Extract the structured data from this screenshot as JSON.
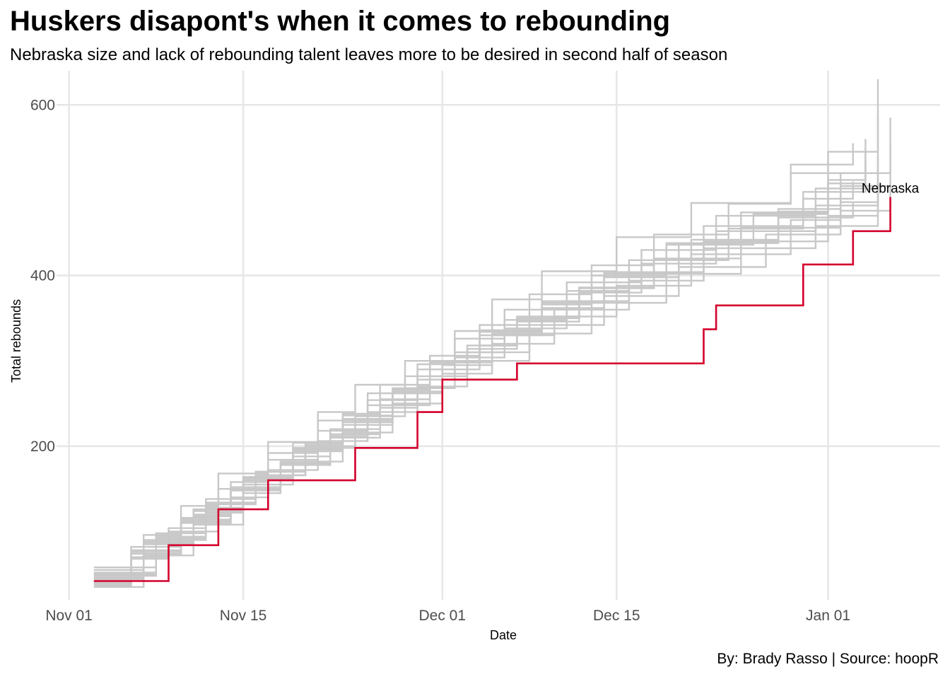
{
  "title": "Huskers disapont's when it comes to rebounding",
  "subtitle": "Nebraska size and lack of rebounding talent leaves more to be desired in second half of season",
  "caption": "By: Brady Rasso | Source: hoopR",
  "colors": {
    "highlight": "#d4002c",
    "others": "#c8c8c8",
    "grid": "#e6e6e6"
  },
  "chart_data": {
    "type": "line",
    "step": true,
    "xlabel": "Date",
    "ylabel": "Total rebounds",
    "xlim": [
      "2022-10-31",
      "2023-01-10"
    ],
    "ylim": [
      20,
      640
    ],
    "x_ticks": [
      {
        "date": "2022-11-01",
        "label": "Nov 01"
      },
      {
        "date": "2022-11-15",
        "label": "Nov 15"
      },
      {
        "date": "2022-12-01",
        "label": "Dec 01"
      },
      {
        "date": "2022-12-15",
        "label": "Dec 15"
      },
      {
        "date": "2023-01-01",
        "label": "Jan 01"
      }
    ],
    "y_ticks": [
      200,
      400,
      600
    ],
    "grid": true,
    "annotation": {
      "text": "Nebraska",
      "date": "2023-01-06",
      "y": 497
    },
    "highlight_series": {
      "name": "Nebraska",
      "x": [
        "2022-11-03",
        "2022-11-09",
        "2022-11-13",
        "2022-11-17",
        "2022-11-24",
        "2022-11-29",
        "2022-12-01",
        "2022-12-07",
        "2022-12-22",
        "2022-12-23",
        "2022-12-30",
        "2023-01-03",
        "2023-01-06"
      ],
      "y": [
        42,
        84,
        126,
        160,
        198,
        240,
        278,
        297,
        337,
        365,
        413,
        452,
        492
      ]
    },
    "series": [
      {
        "x": [
          "2022-11-03",
          "2022-11-07",
          "2022-11-11",
          "2022-11-14",
          "2022-11-18",
          "2022-11-22",
          "2022-11-25",
          "2022-11-28",
          "2022-12-02",
          "2022-12-06",
          "2022-12-11",
          "2022-12-16",
          "2022-12-22",
          "2022-12-30",
          "2023-01-04"
        ],
        "y": [
          45,
          88,
          118,
          152,
          180,
          212,
          248,
          282,
          310,
          348,
          382,
          418,
          458,
          498,
          528
        ]
      },
      {
        "x": [
          "2022-11-03",
          "2022-11-08",
          "2022-11-12",
          "2022-11-15",
          "2022-11-19",
          "2022-11-23",
          "2022-11-27",
          "2022-11-30",
          "2022-12-04",
          "2022-12-09",
          "2022-12-14",
          "2022-12-20",
          "2022-12-28",
          "2023-01-02",
          "2023-01-06"
        ],
        "y": [
          50,
          92,
          128,
          162,
          196,
          225,
          262,
          298,
          330,
          362,
          398,
          438,
          478,
          520,
          552
        ]
      },
      {
        "x": [
          "2022-11-03",
          "2022-11-06",
          "2022-11-10",
          "2022-11-14",
          "2022-11-17",
          "2022-11-21",
          "2022-11-25",
          "2022-11-29",
          "2022-12-03",
          "2022-12-08",
          "2022-12-13",
          "2022-12-19",
          "2022-12-25",
          "2023-01-01",
          "2023-01-05"
        ],
        "y": [
          38,
          76,
          110,
          140,
          172,
          206,
          240,
          270,
          300,
          332,
          368,
          402,
          440,
          470,
          500
        ]
      },
      {
        "x": [
          "2022-11-03",
          "2022-11-07",
          "2022-11-10",
          "2022-11-13",
          "2022-11-17",
          "2022-11-21",
          "2022-11-24",
          "2022-11-28",
          "2022-12-02",
          "2022-12-05",
          "2022-12-09",
          "2022-12-15",
          "2022-12-21",
          "2022-12-29",
          "2023-01-04"
        ],
        "y": [
          55,
          96,
          130,
          168,
          205,
          240,
          272,
          300,
          335,
          372,
          405,
          445,
          485,
          520,
          560
        ]
      },
      {
        "x": [
          "2022-11-03",
          "2022-11-06",
          "2022-11-09",
          "2022-11-13",
          "2022-11-16",
          "2022-11-20",
          "2022-11-24",
          "2022-11-27",
          "2022-12-01",
          "2022-12-05",
          "2022-12-10",
          "2022-12-16",
          "2022-12-22",
          "2022-12-31",
          "2023-01-05"
        ],
        "y": [
          40,
          70,
          100,
          132,
          166,
          198,
          230,
          262,
          295,
          330,
          360,
          394,
          432,
          458,
          490
        ]
      },
      {
        "x": [
          "2022-11-03",
          "2022-11-08",
          "2022-11-12",
          "2022-11-15",
          "2022-11-19",
          "2022-11-22",
          "2022-11-26",
          "2022-11-30",
          "2022-12-04",
          "2022-12-07",
          "2022-12-12",
          "2022-12-18",
          "2022-12-24",
          "2022-12-30",
          "2023-01-03"
        ],
        "y": [
          48,
          90,
          122,
          155,
          188,
          220,
          255,
          290,
          318,
          350,
          385,
          418,
          455,
          490,
          510
        ]
      },
      {
        "x": [
          "2022-11-03",
          "2022-11-07",
          "2022-11-11",
          "2022-11-15",
          "2022-11-18",
          "2022-11-22",
          "2022-11-26",
          "2022-11-29",
          "2022-12-03",
          "2022-12-08",
          "2022-12-14",
          "2022-12-20",
          "2022-12-27",
          "2023-01-02",
          "2023-01-06"
        ],
        "y": [
          35,
          72,
          108,
          145,
          178,
          210,
          245,
          278,
          310,
          342,
          376,
          410,
          448,
          476,
          505
        ]
      },
      {
        "x": [
          "2022-11-03",
          "2022-11-06",
          "2022-11-10",
          "2022-11-14",
          "2022-11-18",
          "2022-11-23",
          "2022-11-27",
          "2022-12-01",
          "2022-12-05",
          "2022-12-10",
          "2022-12-15",
          "2022-12-21",
          "2022-12-29",
          "2023-01-02",
          "2023-01-06"
        ],
        "y": [
          42,
          82,
          114,
          150,
          182,
          216,
          250,
          285,
          320,
          352,
          388,
          425,
          465,
          505,
          585
        ]
      },
      {
        "x": [
          "2022-11-03",
          "2022-11-07",
          "2022-11-11",
          "2022-11-14",
          "2022-11-17",
          "2022-11-21",
          "2022-11-25",
          "2022-11-29",
          "2022-12-02",
          "2022-12-06",
          "2022-12-11",
          "2022-12-17",
          "2022-12-23",
          "2022-12-31",
          "2023-01-05"
        ],
        "y": [
          46,
          85,
          120,
          158,
          192,
          230,
          262,
          296,
          326,
          360,
          392,
          430,
          470,
          502,
          540
        ]
      },
      {
        "x": [
          "2022-11-03",
          "2022-11-08",
          "2022-11-12",
          "2022-11-16",
          "2022-11-20",
          "2022-11-24",
          "2022-11-28",
          "2022-12-02",
          "2022-12-06",
          "2022-12-11",
          "2022-12-16",
          "2022-12-22",
          "2022-12-28",
          "2023-01-01",
          "2023-01-04"
        ],
        "y": [
          52,
          94,
          132,
          166,
          200,
          235,
          268,
          304,
          338,
          370,
          404,
          440,
          475,
          512,
          548
        ]
      },
      {
        "x": [
          "2022-11-03",
          "2022-11-06",
          "2022-11-09",
          "2022-11-12",
          "2022-11-16",
          "2022-11-20",
          "2022-11-23",
          "2022-11-27",
          "2022-12-01",
          "2022-12-04",
          "2022-12-09",
          "2022-12-14",
          "2022-12-21",
          "2022-12-28",
          "2023-01-03"
        ],
        "y": [
          39,
          68,
          104,
          138,
          170,
          202,
          236,
          268,
          300,
          336,
          370,
          404,
          442,
          468,
          485
        ]
      },
      {
        "x": [
          "2022-11-03",
          "2022-11-07",
          "2022-11-11",
          "2022-11-15",
          "2022-11-19",
          "2022-11-23",
          "2022-11-27",
          "2022-12-01",
          "2022-12-05",
          "2022-12-09",
          "2022-12-13",
          "2022-12-19",
          "2022-12-26",
          "2023-01-01",
          "2023-01-04"
        ],
        "y": [
          44,
          86,
          124,
          160,
          194,
          228,
          264,
          298,
          332,
          366,
          400,
          436,
          472,
          508,
          535
        ]
      },
      {
        "x": [
          "2022-11-03",
          "2022-11-08",
          "2022-11-12",
          "2022-11-16",
          "2022-11-19",
          "2022-11-23",
          "2022-11-26",
          "2022-11-30",
          "2022-12-04",
          "2022-12-08",
          "2022-12-13",
          "2022-12-18",
          "2022-12-24",
          "2022-12-29",
          "2023-01-03"
        ],
        "y": [
          58,
          98,
          134,
          170,
          204,
          238,
          272,
          306,
          342,
          378,
          412,
          448,
          484,
          530,
          555
        ]
      },
      {
        "x": [
          "2022-11-03",
          "2022-11-06",
          "2022-11-10",
          "2022-11-14",
          "2022-11-18",
          "2022-11-22",
          "2022-11-26",
          "2022-11-30",
          "2022-12-03",
          "2022-12-07",
          "2022-12-12",
          "2022-12-17",
          "2022-12-23",
          "2022-12-31",
          "2023-01-05"
        ],
        "y": [
          36,
          74,
          112,
          148,
          180,
          214,
          248,
          282,
          314,
          346,
          380,
          414,
          452,
          482,
          518
        ]
      },
      {
        "x": [
          "2022-11-03",
          "2022-11-07",
          "2022-11-11",
          "2022-11-15",
          "2022-11-19",
          "2022-11-23",
          "2022-11-27",
          "2022-11-30",
          "2022-12-04",
          "2022-12-09",
          "2022-12-14",
          "2022-12-19",
          "2022-12-25",
          "2023-01-01",
          "2023-01-05"
        ],
        "y": [
          50,
          90,
          126,
          164,
          198,
          232,
          266,
          300,
          334,
          368,
          402,
          438,
          474,
          545,
          588
        ]
      },
      {
        "x": [
          "2022-11-03",
          "2022-11-06",
          "2022-11-10",
          "2022-11-13",
          "2022-11-17",
          "2022-11-21",
          "2022-11-25",
          "2022-11-29",
          "2022-12-03",
          "2022-12-07",
          "2022-12-12",
          "2022-12-18",
          "2022-12-25",
          "2023-01-02",
          "2023-01-05"
        ],
        "y": [
          41,
          78,
          116,
          150,
          184,
          218,
          254,
          290,
          318,
          352,
          386,
          420,
          456,
          486,
          630
        ]
      }
    ]
  }
}
